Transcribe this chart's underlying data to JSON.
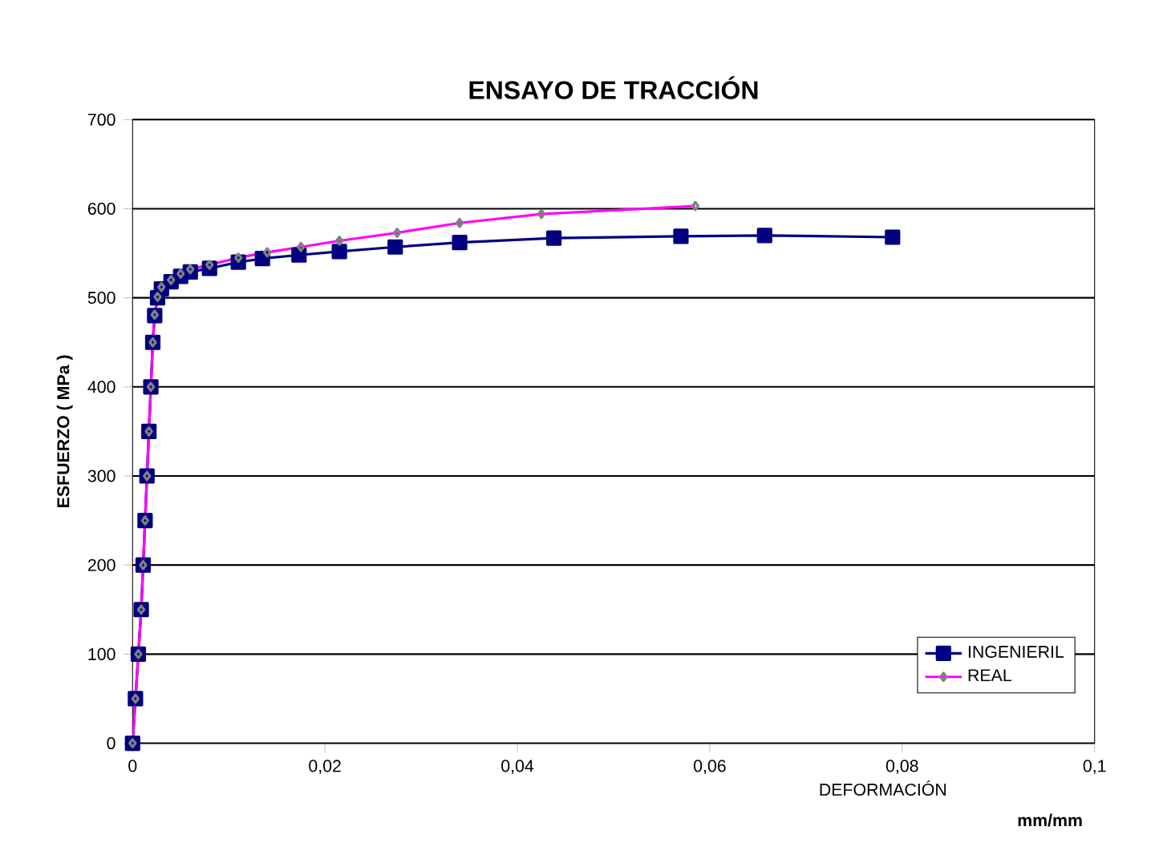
{
  "chart_data": {
    "type": "line",
    "title": "ENSAYO DE TRACCIÓN",
    "xlabel": "DEFORMACIÓN",
    "ylabel": "ESFUERZO ( MPa )",
    "annotations": [
      "mm/mm"
    ],
    "xlim": [
      0,
      0.1
    ],
    "ylim": [
      0,
      700
    ],
    "xticks": [
      0,
      {
        "value": 0.02,
        "label": "0,02"
      },
      {
        "value": 0.04,
        "label": "0,04"
      },
      {
        "value": 0.06,
        "label": "0,06"
      },
      {
        "value": 0.08,
        "label": "0,08"
      },
      {
        "value": 0.1,
        "label": "0,1"
      }
    ],
    "yticks": [
      0,
      100,
      200,
      300,
      400,
      500,
      600,
      700
    ],
    "grid": "y",
    "legend": "bottom right",
    "series": [
      {
        "name": "INGENIERIL",
        "color": "#000080",
        "marker": "square",
        "x": [
          0,
          0.0003,
          0.0006,
          0.0009,
          0.0011,
          0.0013,
          0.0015,
          0.0017,
          0.0019,
          0.0021,
          0.0023,
          0.0026,
          0.003,
          0.004,
          0.005,
          0.006,
          0.008,
          0.011,
          0.0135,
          0.0173,
          0.0215,
          0.0273,
          0.034,
          0.0438,
          0.057,
          0.0657,
          0.079
        ],
        "values": [
          0,
          50,
          100,
          150,
          200,
          250,
          300,
          350,
          400,
          450,
          480,
          500,
          510,
          518,
          524,
          529,
          533,
          540,
          544,
          548,
          552,
          557,
          562,
          567,
          569,
          570,
          568
        ]
      },
      {
        "name": "REAL",
        "color": "#ff00ff",
        "marker": "diamond",
        "x": [
          0,
          0.0003,
          0.0006,
          0.0009,
          0.0011,
          0.0013,
          0.0015,
          0.0017,
          0.0019,
          0.0021,
          0.0023,
          0.0026,
          0.003,
          0.004,
          0.005,
          0.006,
          0.008,
          0.011,
          0.014,
          0.0175,
          0.0215,
          0.0275,
          0.034,
          0.0425,
          0.0585
        ],
        "values": [
          0,
          50,
          100,
          150,
          200,
          250,
          300,
          350,
          400,
          450,
          481,
          501,
          512,
          520,
          527,
          532,
          537,
          545,
          551,
          557,
          564,
          573,
          584,
          594,
          603
        ]
      }
    ]
  }
}
